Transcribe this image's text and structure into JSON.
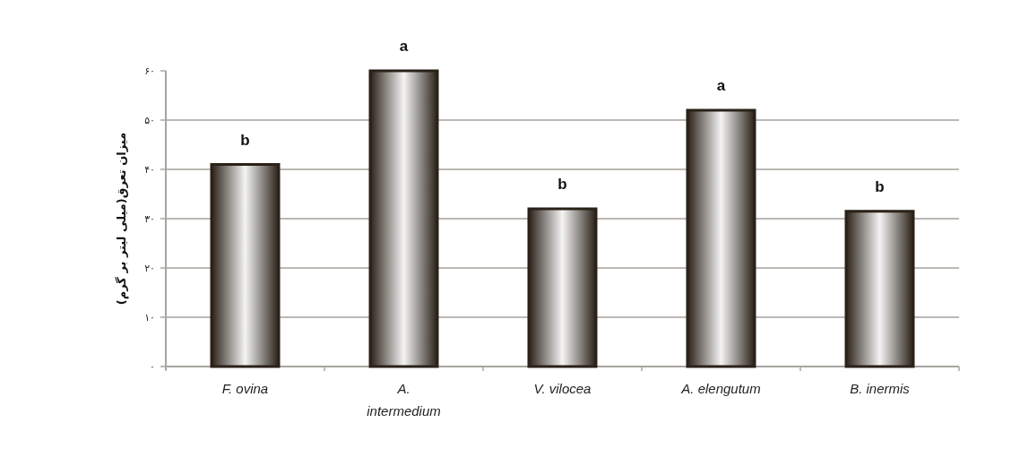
{
  "chart_data": {
    "type": "bar",
    "ylabel": "میزان تعرق(میلی لیتر بر گرم)",
    "categories": [
      "F. ovina",
      "A. intermedium",
      "V. vilocea",
      "A. elengutum",
      "B. inermis"
    ],
    "values": [
      41,
      60,
      32,
      52,
      31.5
    ],
    "color": "#2a2118",
    "ylim": [
      0,
      60
    ],
    "yticks": [
      {
        "value": 0,
        "label": "۰"
      },
      {
        "value": 10,
        "label": "۱۰"
      },
      {
        "value": 20,
        "label": "۲۰"
      },
      {
        "value": 30,
        "label": "۳۰"
      },
      {
        "value": 40,
        "label": "۴۰"
      },
      {
        "value": 50,
        "label": "۵۰"
      },
      {
        "value": 60,
        "label": "۶۰"
      }
    ],
    "grid": "y",
    "annotations": [
      {
        "text": "b",
        "x": "F. ovina",
        "y": 41
      },
      {
        "text": "a",
        "x": "A. intermedium",
        "y": 60
      },
      {
        "text": "b",
        "x": "V. vilocea",
        "y": 32
      },
      {
        "text": "a",
        "x": "A. elengutum",
        "y": 52
      },
      {
        "text": "b",
        "x": "B. inermis",
        "y": 31.5
      }
    ]
  }
}
